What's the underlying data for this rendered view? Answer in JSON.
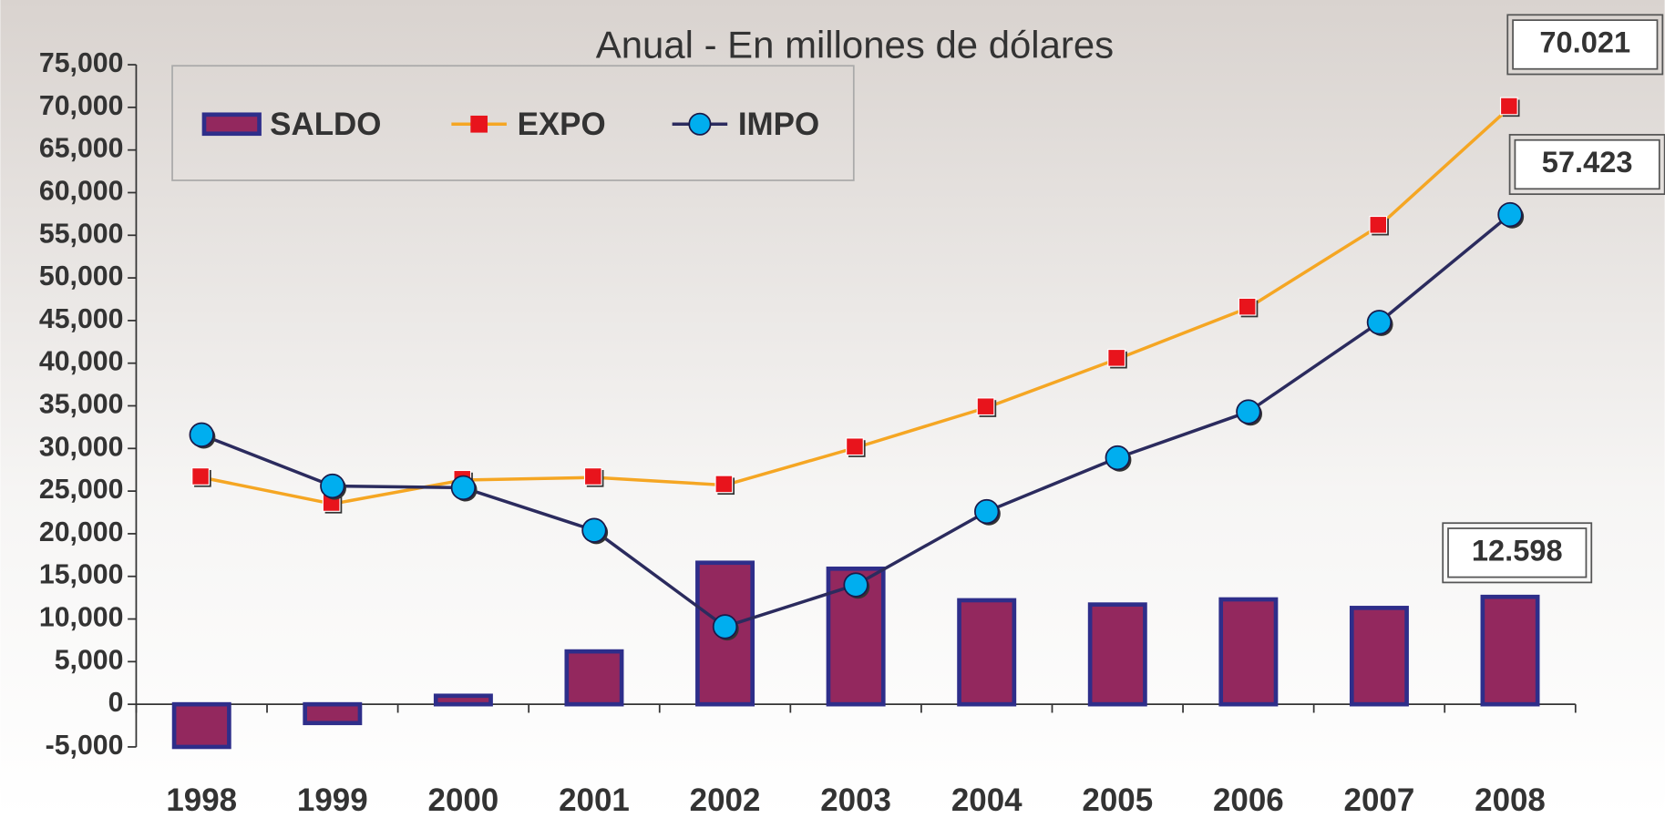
{
  "chart_data": {
    "type": "bar-line",
    "title": "Anual - En millones de dólares",
    "categories": [
      "1998",
      "1999",
      "2000",
      "2001",
      "2002",
      "2003",
      "2004",
      "2005",
      "2006",
      "2007",
      "2008"
    ],
    "series": [
      {
        "name": "SALDO",
        "type": "bar",
        "color": "#93285e",
        "edge": "#2e2e8a",
        "values": [
          -5000,
          -2200,
          1000,
          6200,
          16600,
          15900,
          12200,
          11700,
          12300,
          11300,
          12598
        ],
        "value_labels": [
          null,
          null,
          null,
          null,
          null,
          null,
          null,
          null,
          null,
          null,
          "12.598"
        ]
      },
      {
        "name": "EXPO",
        "type": "line",
        "color": "#f5a623",
        "marker": "square",
        "marker_color": "#e8141c",
        "values": [
          26600,
          23500,
          26300,
          26600,
          25700,
          30100,
          34800,
          40500,
          46500,
          56100,
          70021
        ],
        "value_labels": [
          null,
          null,
          null,
          null,
          null,
          null,
          null,
          null,
          null,
          null,
          "70.021"
        ]
      },
      {
        "name": "IMPO",
        "type": "line",
        "color": "#2b2b5e",
        "marker": "circle",
        "marker_color": "#00aeef",
        "values": [
          31600,
          25600,
          25400,
          20400,
          9100,
          14000,
          22600,
          28900,
          34300,
          44800,
          57423
        ],
        "value_labels": [
          null,
          null,
          null,
          null,
          null,
          null,
          null,
          null,
          null,
          null,
          "57.423"
        ]
      }
    ],
    "ylim": [
      -5000,
      75000
    ],
    "yticks": [
      {
        "value": -5000,
        "label": "-5,000"
      },
      0,
      {
        "value": 5000,
        "label": "5,000"
      },
      {
        "value": 10000,
        "label": "10,000"
      },
      {
        "value": 15000,
        "label": "15,000"
      },
      {
        "value": 20000,
        "label": "20,000"
      },
      {
        "value": 25000,
        "label": "25,000"
      },
      {
        "value": 30000,
        "label": "30,000"
      },
      {
        "value": 35000,
        "label": "35,000"
      },
      {
        "value": 40000,
        "label": "40,000"
      },
      {
        "value": 45000,
        "label": "45,000"
      },
      {
        "value": 50000,
        "label": "50,000"
      },
      {
        "value": 55000,
        "label": "55,000"
      },
      {
        "value": 60000,
        "label": "60,000"
      },
      {
        "value": 65000,
        "label": "65,000"
      },
      {
        "value": 70000,
        "label": "70,000"
      },
      {
        "value": 75000,
        "label": "75,000"
      }
    ],
    "legend": "top-left",
    "grid": false
  }
}
